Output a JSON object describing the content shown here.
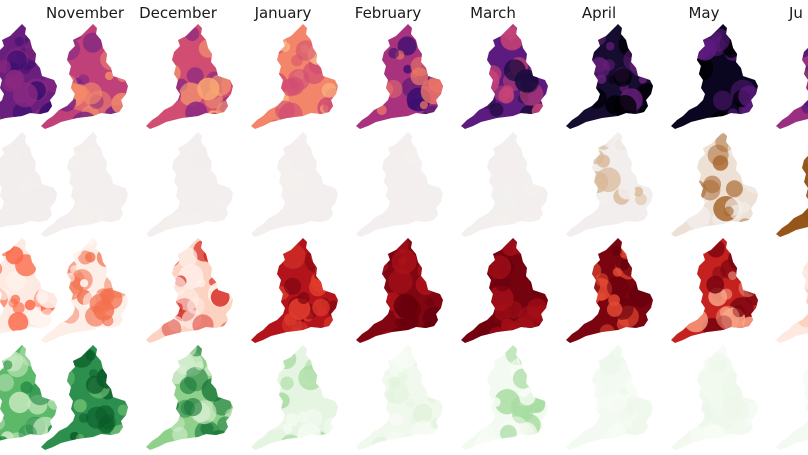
{
  "chart_data": {
    "type": "heatmap",
    "title": "",
    "description": "Small-multiple choropleth maps of England (local authority level), one column per month, one row per variable/colormap",
    "columns": [
      "(previous, cut off)",
      "November",
      "December",
      "January",
      "February",
      "March",
      "April",
      "May",
      "Ju (June, cut off)"
    ],
    "rows": [
      {
        "name": "row-1-magma",
        "colormap": "magma",
        "palette": [
          "#000004",
          "#3b0f70",
          "#8c2981",
          "#de4968",
          "#fe9f6d",
          "#fcfdbf"
        ],
        "cells": [
          {
            "month": "(prev)",
            "base": "#6a1f7e",
            "hi": "#8c2981",
            "lo": "#3b0f70"
          },
          {
            "month": "November",
            "base": "#c0407a",
            "hi": "#f48a6a",
            "lo": "#7a2582"
          },
          {
            "month": "December",
            "base": "#d24d72",
            "hi": "#fba870",
            "lo": "#8c2981"
          },
          {
            "month": "January",
            "base": "#f2856a",
            "hi": "#fdbb82",
            "lo": "#d24d72"
          },
          {
            "month": "February",
            "base": "#a8327d",
            "hi": "#f07a66",
            "lo": "#3b0f70"
          },
          {
            "month": "March",
            "base": "#5c1b7e",
            "hi": "#c74376",
            "lo": "#1a0c3c"
          },
          {
            "month": "April",
            "base": "#150c30",
            "hi": "#6a1f7e",
            "lo": "#000004"
          },
          {
            "month": "May",
            "base": "#0a0620",
            "hi": "#5c1b7e",
            "lo": "#000004"
          },
          {
            "month": "June",
            "base": "#9a2e80",
            "hi": "#f48a6a",
            "lo": "#4b1778"
          }
        ]
      },
      {
        "name": "row-2-brown",
        "colormap": "BrBG-brown",
        "palette": [
          "#f3efee",
          "#e8d8c8",
          "#c59a6a",
          "#8c510a"
        ],
        "cells": [
          {
            "month": "(prev)",
            "base": "#f2eeed",
            "hi": "#f2eeed",
            "lo": "#f2eeed"
          },
          {
            "month": "November",
            "base": "#f3efee",
            "hi": "#f3efee",
            "lo": "#f3efee"
          },
          {
            "month": "December",
            "base": "#f3efee",
            "hi": "#f3efee",
            "lo": "#f3efee"
          },
          {
            "month": "January",
            "base": "#f3efee",
            "hi": "#f3efee",
            "lo": "#f3efee"
          },
          {
            "month": "February",
            "base": "#f3efee",
            "hi": "#f3efee",
            "lo": "#f3efee"
          },
          {
            "month": "March",
            "base": "#f3efee",
            "hi": "#f3efee",
            "lo": "#f3efee"
          },
          {
            "month": "April",
            "base": "#f2eeed",
            "hi": "#d9b999",
            "lo": "#f2eeed"
          },
          {
            "month": "May",
            "base": "#ede0d4",
            "hi": "#a9682f",
            "lo": "#f3efee"
          },
          {
            "month": "June",
            "base": "#96561a",
            "hi": "#8c510a",
            "lo": "#a3662b"
          }
        ]
      },
      {
        "name": "row-3-reds",
        "colormap": "Reds",
        "palette": [
          "#fff5f0",
          "#fcbba1",
          "#fb6a4a",
          "#cb181d",
          "#67000d"
        ],
        "cells": [
          {
            "month": "(prev)",
            "base": "#fdebe3",
            "hi": "#fb6a4a",
            "lo": "#fff5f0"
          },
          {
            "month": "November",
            "base": "#fdeee8",
            "hi": "#f3704e",
            "lo": "#fff5f0"
          },
          {
            "month": "December",
            "base": "#fcd2c0",
            "hi": "#d72c24",
            "lo": "#fff0ea"
          },
          {
            "month": "January",
            "base": "#b3141c",
            "hi": "#e03b2c",
            "lo": "#7a0510"
          },
          {
            "month": "February",
            "base": "#800611",
            "hi": "#b3141c",
            "lo": "#67000d"
          },
          {
            "month": "March",
            "base": "#74030f",
            "hi": "#a40f18",
            "lo": "#67000d"
          },
          {
            "month": "April",
            "base": "#7a0510",
            "hi": "#e64a33",
            "lo": "#67000d"
          },
          {
            "month": "May",
            "base": "#c4211f",
            "hi": "#fca588",
            "lo": "#7a0510"
          },
          {
            "month": "June",
            "base": "#fde9e0",
            "hi": "#fcc9b4",
            "lo": "#fff5f0"
          }
        ]
      },
      {
        "name": "row-4-greens",
        "colormap": "Greens",
        "palette": [
          "#f7fcf5",
          "#c7e9c0",
          "#74c476",
          "#238b45",
          "#00441b"
        ],
        "cells": [
          {
            "month": "(prev)",
            "base": "#5db96a",
            "hi": "#c7e9c0",
            "lo": "#238b45"
          },
          {
            "month": "November",
            "base": "#2c8f4d",
            "hi": "#74c476",
            "lo": "#0a5c2a"
          },
          {
            "month": "December",
            "base": "#8fd08b",
            "hi": "#1b7a3a",
            "lo": "#d8f0d2"
          },
          {
            "month": "January",
            "base": "#e6f5e1",
            "hi": "#a8dca2",
            "lo": "#f4fbf2"
          },
          {
            "month": "February",
            "base": "#f1f9ee",
            "hi": "#e1f3dc",
            "lo": "#f7fcf5"
          },
          {
            "month": "March",
            "base": "#f3faf1",
            "hi": "#a8dca2",
            "lo": "#f7fcf5"
          },
          {
            "month": "April",
            "base": "#f3faf1",
            "hi": "#eef7eb",
            "lo": "#f7fcf5"
          },
          {
            "month": "May",
            "base": "#f2f9ef",
            "hi": "#eef7eb",
            "lo": "#f7fcf5"
          },
          {
            "month": "June",
            "base": "#f3faf1",
            "hi": "#f3faf1",
            "lo": "#f7fcf5"
          }
        ]
      }
    ],
    "xlabel": "",
    "ylabel": "",
    "grid": false,
    "legend": "none",
    "axes_visible": false
  },
  "header": {
    "titles": [
      "November",
      "December",
      "January",
      "February",
      "March",
      "April",
      "May",
      "Ju"
    ]
  }
}
